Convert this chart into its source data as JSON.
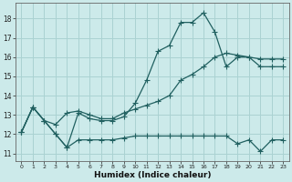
{
  "xlabel": "Humidex (Indice chaleur)",
  "bg_color": "#cceaea",
  "grid_color": "#aad2d2",
  "line_color": "#206060",
  "xlim": [
    -0.5,
    23.5
  ],
  "ylim": [
    10.6,
    18.8
  ],
  "yticks": [
    11,
    12,
    13,
    14,
    15,
    16,
    17,
    18
  ],
  "xticks": [
    0,
    1,
    2,
    3,
    4,
    5,
    6,
    7,
    8,
    9,
    10,
    11,
    12,
    13,
    14,
    15,
    16,
    17,
    18,
    19,
    20,
    21,
    22,
    23
  ],
  "line_peak_x": [
    0,
    1,
    2,
    3,
    4,
    5,
    6,
    7,
    8,
    9,
    10,
    11,
    12,
    13,
    14,
    15,
    16,
    17,
    18,
    19,
    20,
    21,
    22,
    23
  ],
  "line_peak_y": [
    12.1,
    13.4,
    12.7,
    12.0,
    11.3,
    13.1,
    12.8,
    12.7,
    12.7,
    12.9,
    13.6,
    14.8,
    16.3,
    16.6,
    17.8,
    17.8,
    18.3,
    17.3,
    15.5,
    16.0,
    16.0,
    15.5,
    15.5,
    15.5
  ],
  "line_mid_x": [
    0,
    1,
    2,
    3,
    4,
    5,
    6,
    7,
    8,
    9,
    10,
    11,
    12,
    13,
    14,
    15,
    16,
    17,
    18,
    19,
    20,
    21,
    22,
    23
  ],
  "line_mid_y": [
    12.1,
    13.4,
    12.7,
    12.5,
    13.1,
    13.2,
    13.0,
    12.8,
    12.8,
    13.1,
    13.3,
    13.5,
    13.7,
    14.0,
    14.8,
    15.1,
    15.5,
    16.0,
    16.2,
    16.1,
    16.0,
    15.9,
    15.9,
    15.9
  ],
  "line_bot_x": [
    0,
    1,
    2,
    3,
    4,
    5,
    6,
    7,
    8,
    9,
    10,
    11,
    12,
    13,
    14,
    15,
    16,
    17,
    18,
    19,
    20,
    21,
    22,
    23
  ],
  "line_bot_y": [
    12.1,
    13.4,
    12.7,
    12.0,
    11.3,
    11.7,
    11.7,
    11.7,
    11.7,
    11.8,
    11.9,
    11.9,
    11.9,
    11.9,
    11.9,
    11.9,
    11.9,
    11.9,
    11.9,
    11.5,
    11.7,
    11.1,
    11.7,
    11.7
  ]
}
